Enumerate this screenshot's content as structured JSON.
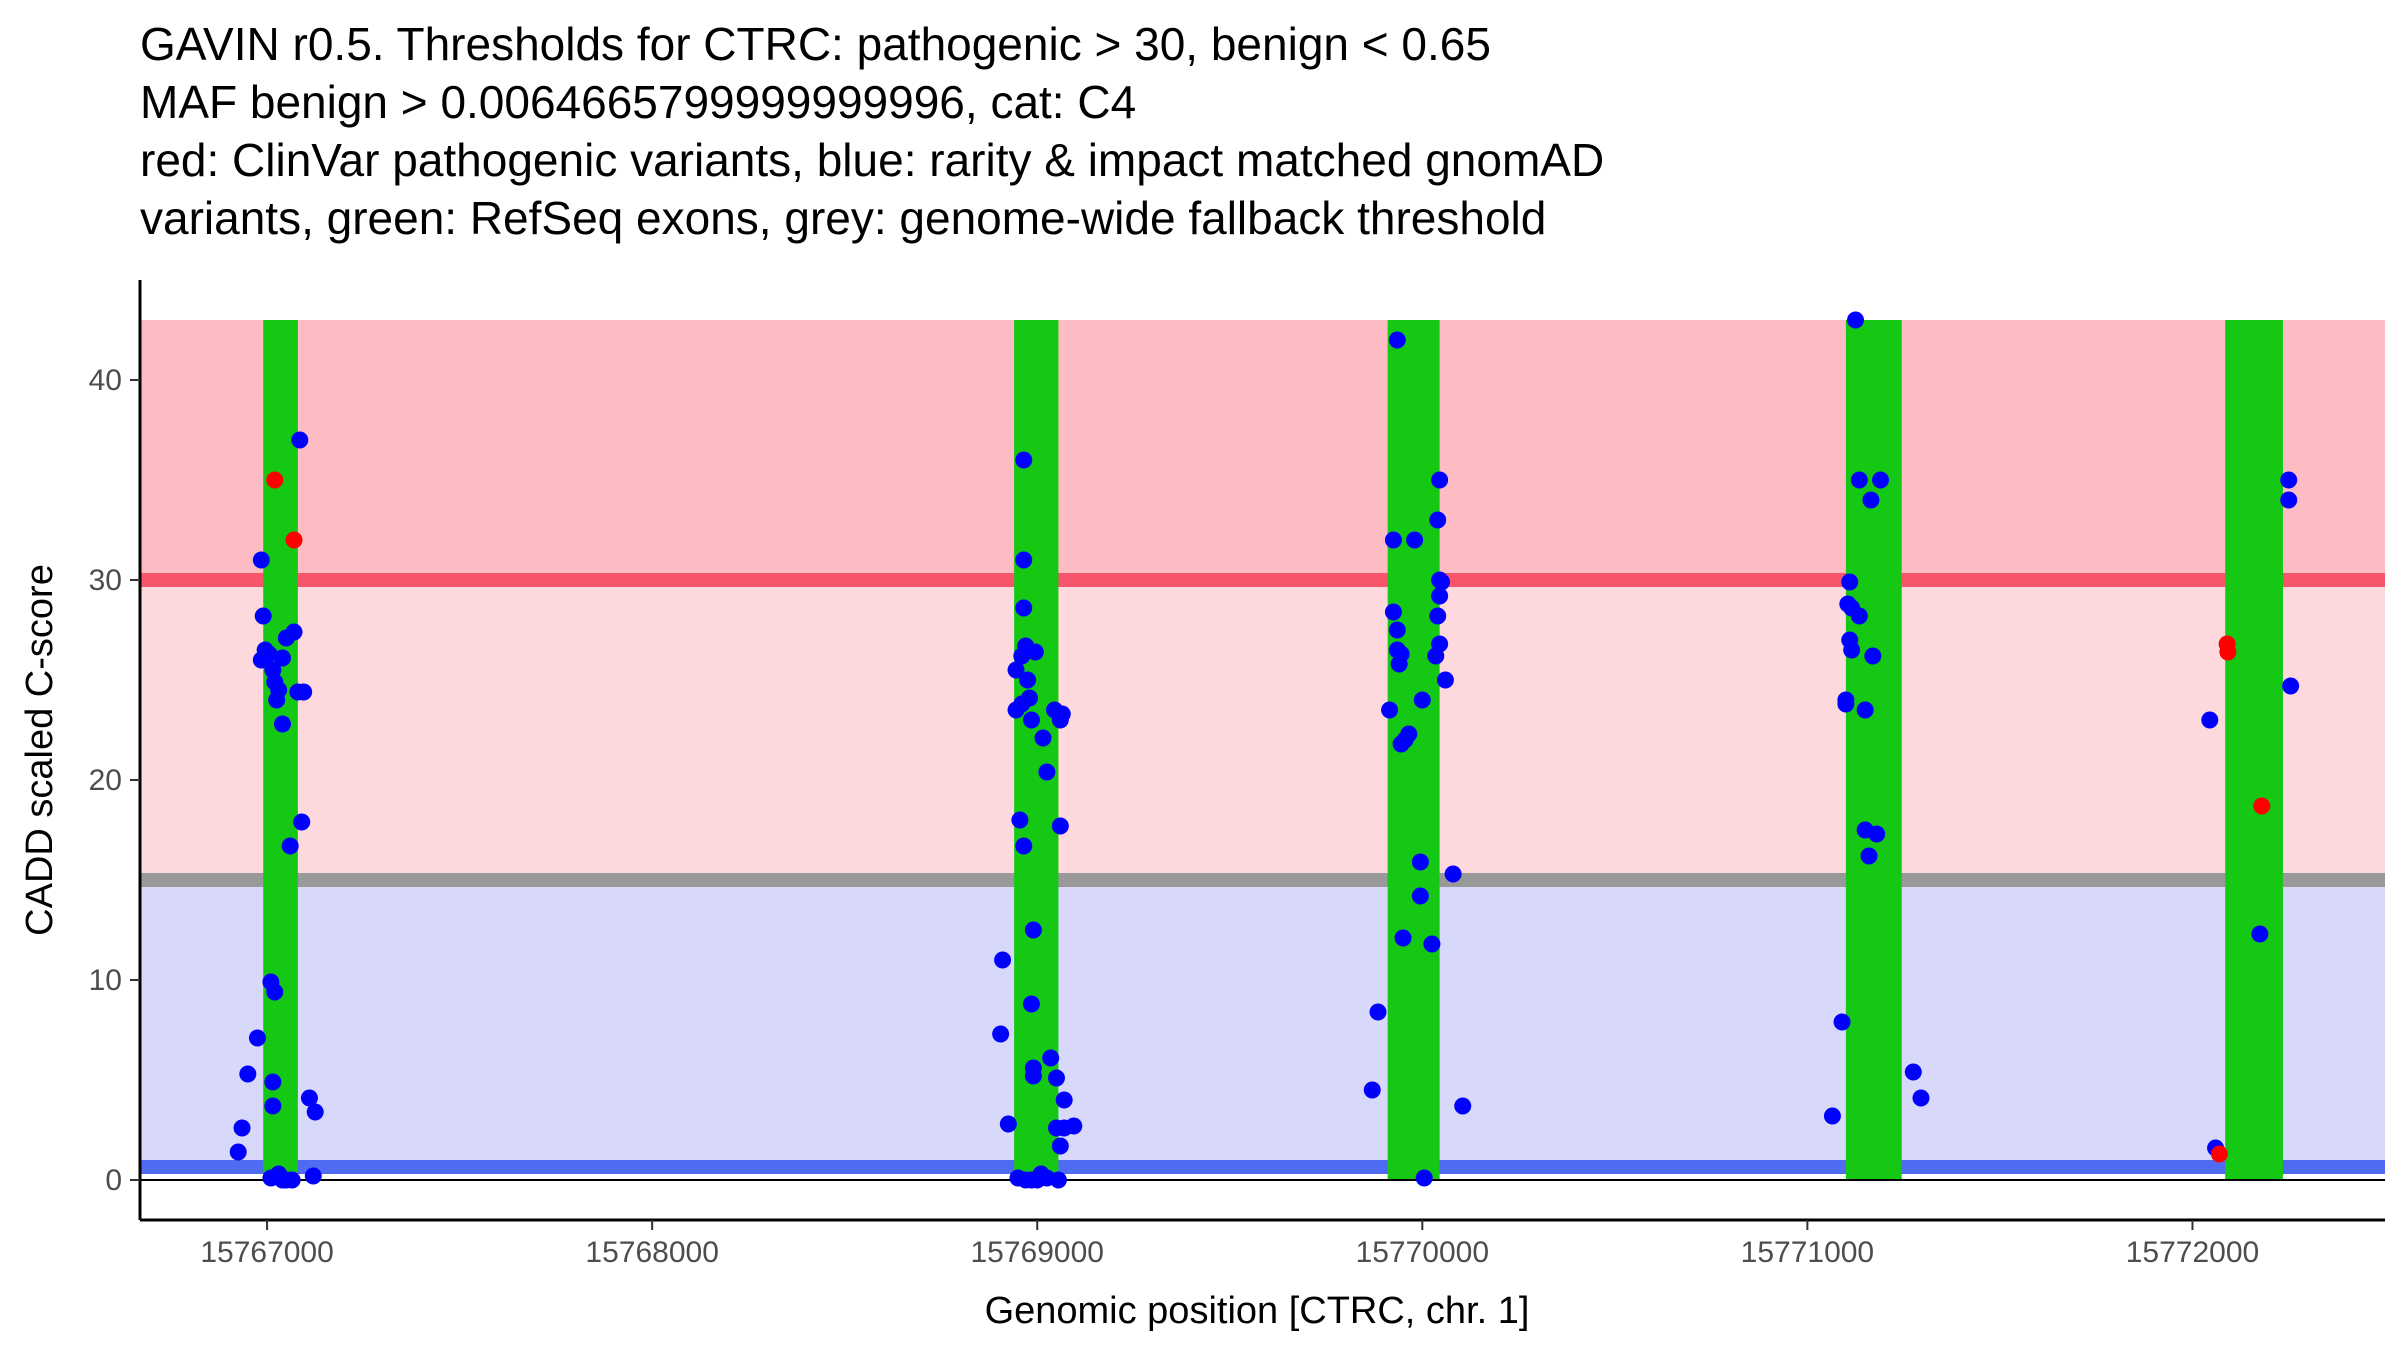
{
  "chart_data": {
    "type": "scatter",
    "title_lines": [
      "GAVIN r0.5. Thresholds for CTRC: pathogenic > 30, benign < 0.65",
      "MAF benign > 0.0064665799999999996, cat: C4",
      "red: ClinVar pathogenic variants, blue: rarity & impact matched gnomAD",
      "variants, green: RefSeq exons, grey: genome-wide fallback threshold"
    ],
    "xlabel": "Genomic position [CTRC, chr. 1]",
    "ylabel": "CADD scaled C-score",
    "xlim": [
      15766670,
      15772500
    ],
    "ylim": [
      -2,
      45
    ],
    "x_ticks": [
      15767000,
      15768000,
      15769000,
      15770000,
      15771000,
      15772000
    ],
    "x_tick_labels": [
      "15767000",
      "15768000",
      "15769000",
      "15770000",
      "15771000",
      "15772000"
    ],
    "y_ticks": [
      0,
      10,
      20,
      30,
      40
    ],
    "y_tick_labels": [
      "0",
      "10",
      "20",
      "30",
      "40"
    ],
    "y_max_band": 43,
    "thresholds": {
      "pathogenic": 30,
      "benign": 0.65,
      "genome_wide": 15
    },
    "colors": {
      "pathogenic_band": "#fdbcc3",
      "mid_band": "#fdd8dd",
      "benign_band": "#d8d9fa",
      "pathogenic_line": "#f6556b",
      "benign_line": "#4f6bf2",
      "genome_wide_line": "#999999",
      "exon": "#14c814",
      "pathogenic_point": "#ff0000",
      "gnomad_point": "#0000ff",
      "axis": "#000000"
    },
    "exons": [
      [
        15766990,
        15767080
      ],
      [
        15768940,
        15769055
      ],
      [
        15769910,
        15770045
      ],
      [
        15771100,
        15771245
      ],
      [
        15772085,
        15772235
      ]
    ],
    "series": [
      {
        "name": "ClinVar pathogenic variants",
        "color": "#ff0000",
        "points": [
          [
            15767020,
            35
          ],
          [
            15767070,
            32
          ],
          [
            15772090,
            26.8
          ],
          [
            15772092,
            26.4
          ],
          [
            15772180,
            18.7
          ],
          [
            15772070,
            1.3
          ]
        ]
      },
      {
        "name": "rarity & impact matched gnomAD variants",
        "color": "#0000ff",
        "points": [
          [
            15766985,
            31
          ],
          [
            15766990,
            28.2
          ],
          [
            15766985,
            26
          ],
          [
            15766995,
            26.5
          ],
          [
            15767005,
            26.3
          ],
          [
            15767015,
            25.5
          ],
          [
            15767020,
            24.9
          ],
          [
            15767030,
            24.5
          ],
          [
            15767025,
            24.0
          ],
          [
            15767040,
            26.1
          ],
          [
            15767050,
            27.1
          ],
          [
            15767070,
            27.4
          ],
          [
            15767080,
            24.4
          ],
          [
            15767095,
            24.4
          ],
          [
            15767040,
            22.8
          ],
          [
            15767060,
            16.7
          ],
          [
            15767090,
            17.9
          ],
          [
            15767085,
            37.0
          ],
          [
            15767010,
            9.9
          ],
          [
            15767020,
            9.4
          ],
          [
            15766975,
            7.1
          ],
          [
            15766950,
            5.3
          ],
          [
            15767015,
            4.9
          ],
          [
            15767015,
            3.7
          ],
          [
            15766935,
            2.6
          ],
          [
            15766925,
            1.4
          ],
          [
            15767110,
            4.1
          ],
          [
            15767125,
            3.4
          ],
          [
            15767010,
            0.1
          ],
          [
            15767030,
            0.3
          ],
          [
            15767050,
            0
          ],
          [
            15767065,
            0
          ],
          [
            15767040,
            0
          ],
          [
            15767120,
            0.2
          ],
          [
            15768965,
            36.0
          ],
          [
            15768965,
            31.0
          ],
          [
            15768965,
            28.6
          ],
          [
            15768960,
            26.2
          ],
          [
            15768970,
            26.7
          ],
          [
            15768945,
            25.5
          ],
          [
            15768975,
            25.0
          ],
          [
            15768980,
            24.1
          ],
          [
            15768960,
            23.8
          ],
          [
            15768945,
            23.5
          ],
          [
            15768985,
            23.0
          ],
          [
            15769015,
            22.1
          ],
          [
            15768995,
            26.4
          ],
          [
            15769025,
            20.4
          ],
          [
            15769045,
            23.5
          ],
          [
            15769065,
            23.3
          ],
          [
            15769060,
            23.0
          ],
          [
            15768955,
            18.0
          ],
          [
            15768965,
            16.7
          ],
          [
            15769060,
            17.7
          ],
          [
            15768990,
            12.5
          ],
          [
            15768910,
            11.0
          ],
          [
            15768985,
            8.8
          ],
          [
            15768905,
            7.3
          ],
          [
            15769035,
            6.1
          ],
          [
            15768990,
            5.6
          ],
          [
            15768990,
            5.2
          ],
          [
            15769050,
            5.1
          ],
          [
            15769070,
            4.0
          ],
          [
            15768925,
            2.8
          ],
          [
            15769050,
            2.6
          ],
          [
            15769070,
            2.6
          ],
          [
            15769095,
            2.7
          ],
          [
            15769060,
            1.7
          ],
          [
            15768950,
            0.1
          ],
          [
            15768970,
            0
          ],
          [
            15768985,
            0
          ],
          [
            15769000,
            0
          ],
          [
            15769010,
            0.3
          ],
          [
            15769025,
            0.1
          ],
          [
            15769055,
            0
          ],
          [
            15769935,
            42.0
          ],
          [
            15770045,
            35.0
          ],
          [
            15770040,
            33.0
          ],
          [
            15769925,
            32.0
          ],
          [
            15769980,
            32.0
          ],
          [
            15770045,
            30.0
          ],
          [
            15770050,
            29.9
          ],
          [
            15770045,
            29.2
          ],
          [
            15769925,
            28.4
          ],
          [
            15770040,
            28.2
          ],
          [
            15769935,
            27.5
          ],
          [
            15769935,
            26.5
          ],
          [
            15770045,
            26.8
          ],
          [
            15769945,
            26.3
          ],
          [
            15769940,
            25.8
          ],
          [
            15770035,
            26.2
          ],
          [
            15770060,
            25.0
          ],
          [
            15770000,
            24.0
          ],
          [
            15769915,
            23.5
          ],
          [
            15769965,
            22.3
          ],
          [
            15769955,
            22.0
          ],
          [
            15769945,
            21.8
          ],
          [
            15769995,
            15.9
          ],
          [
            15770080,
            15.3
          ],
          [
            15769995,
            14.2
          ],
          [
            15769950,
            12.1
          ],
          [
            15770025,
            11.8
          ],
          [
            15769885,
            8.4
          ],
          [
            15769870,
            4.5
          ],
          [
            15770105,
            3.7
          ],
          [
            15770005,
            0.1
          ],
          [
            15771125,
            43.0
          ],
          [
            15771135,
            35.0
          ],
          [
            15771190,
            35.0
          ],
          [
            15771165,
            34.0
          ],
          [
            15771110,
            29.9
          ],
          [
            15771105,
            28.8
          ],
          [
            15771115,
            28.6
          ],
          [
            15771135,
            28.2
          ],
          [
            15771110,
            27.0
          ],
          [
            15771115,
            26.5
          ],
          [
            15771170,
            26.2
          ],
          [
            15771100,
            24.0
          ],
          [
            15771100,
            23.8
          ],
          [
            15771150,
            23.5
          ],
          [
            15771150,
            17.5
          ],
          [
            15771180,
            17.3
          ],
          [
            15771160,
            16.2
          ],
          [
            15771090,
            7.9
          ],
          [
            15771065,
            3.2
          ],
          [
            15771275,
            5.4
          ],
          [
            15771295,
            4.1
          ],
          [
            15772045,
            23.0
          ],
          [
            15772250,
            35.0
          ],
          [
            15772250,
            34.0
          ],
          [
            15772255,
            24.7
          ],
          [
            15772175,
            12.3
          ],
          [
            15772060,
            1.6
          ]
        ]
      }
    ]
  }
}
